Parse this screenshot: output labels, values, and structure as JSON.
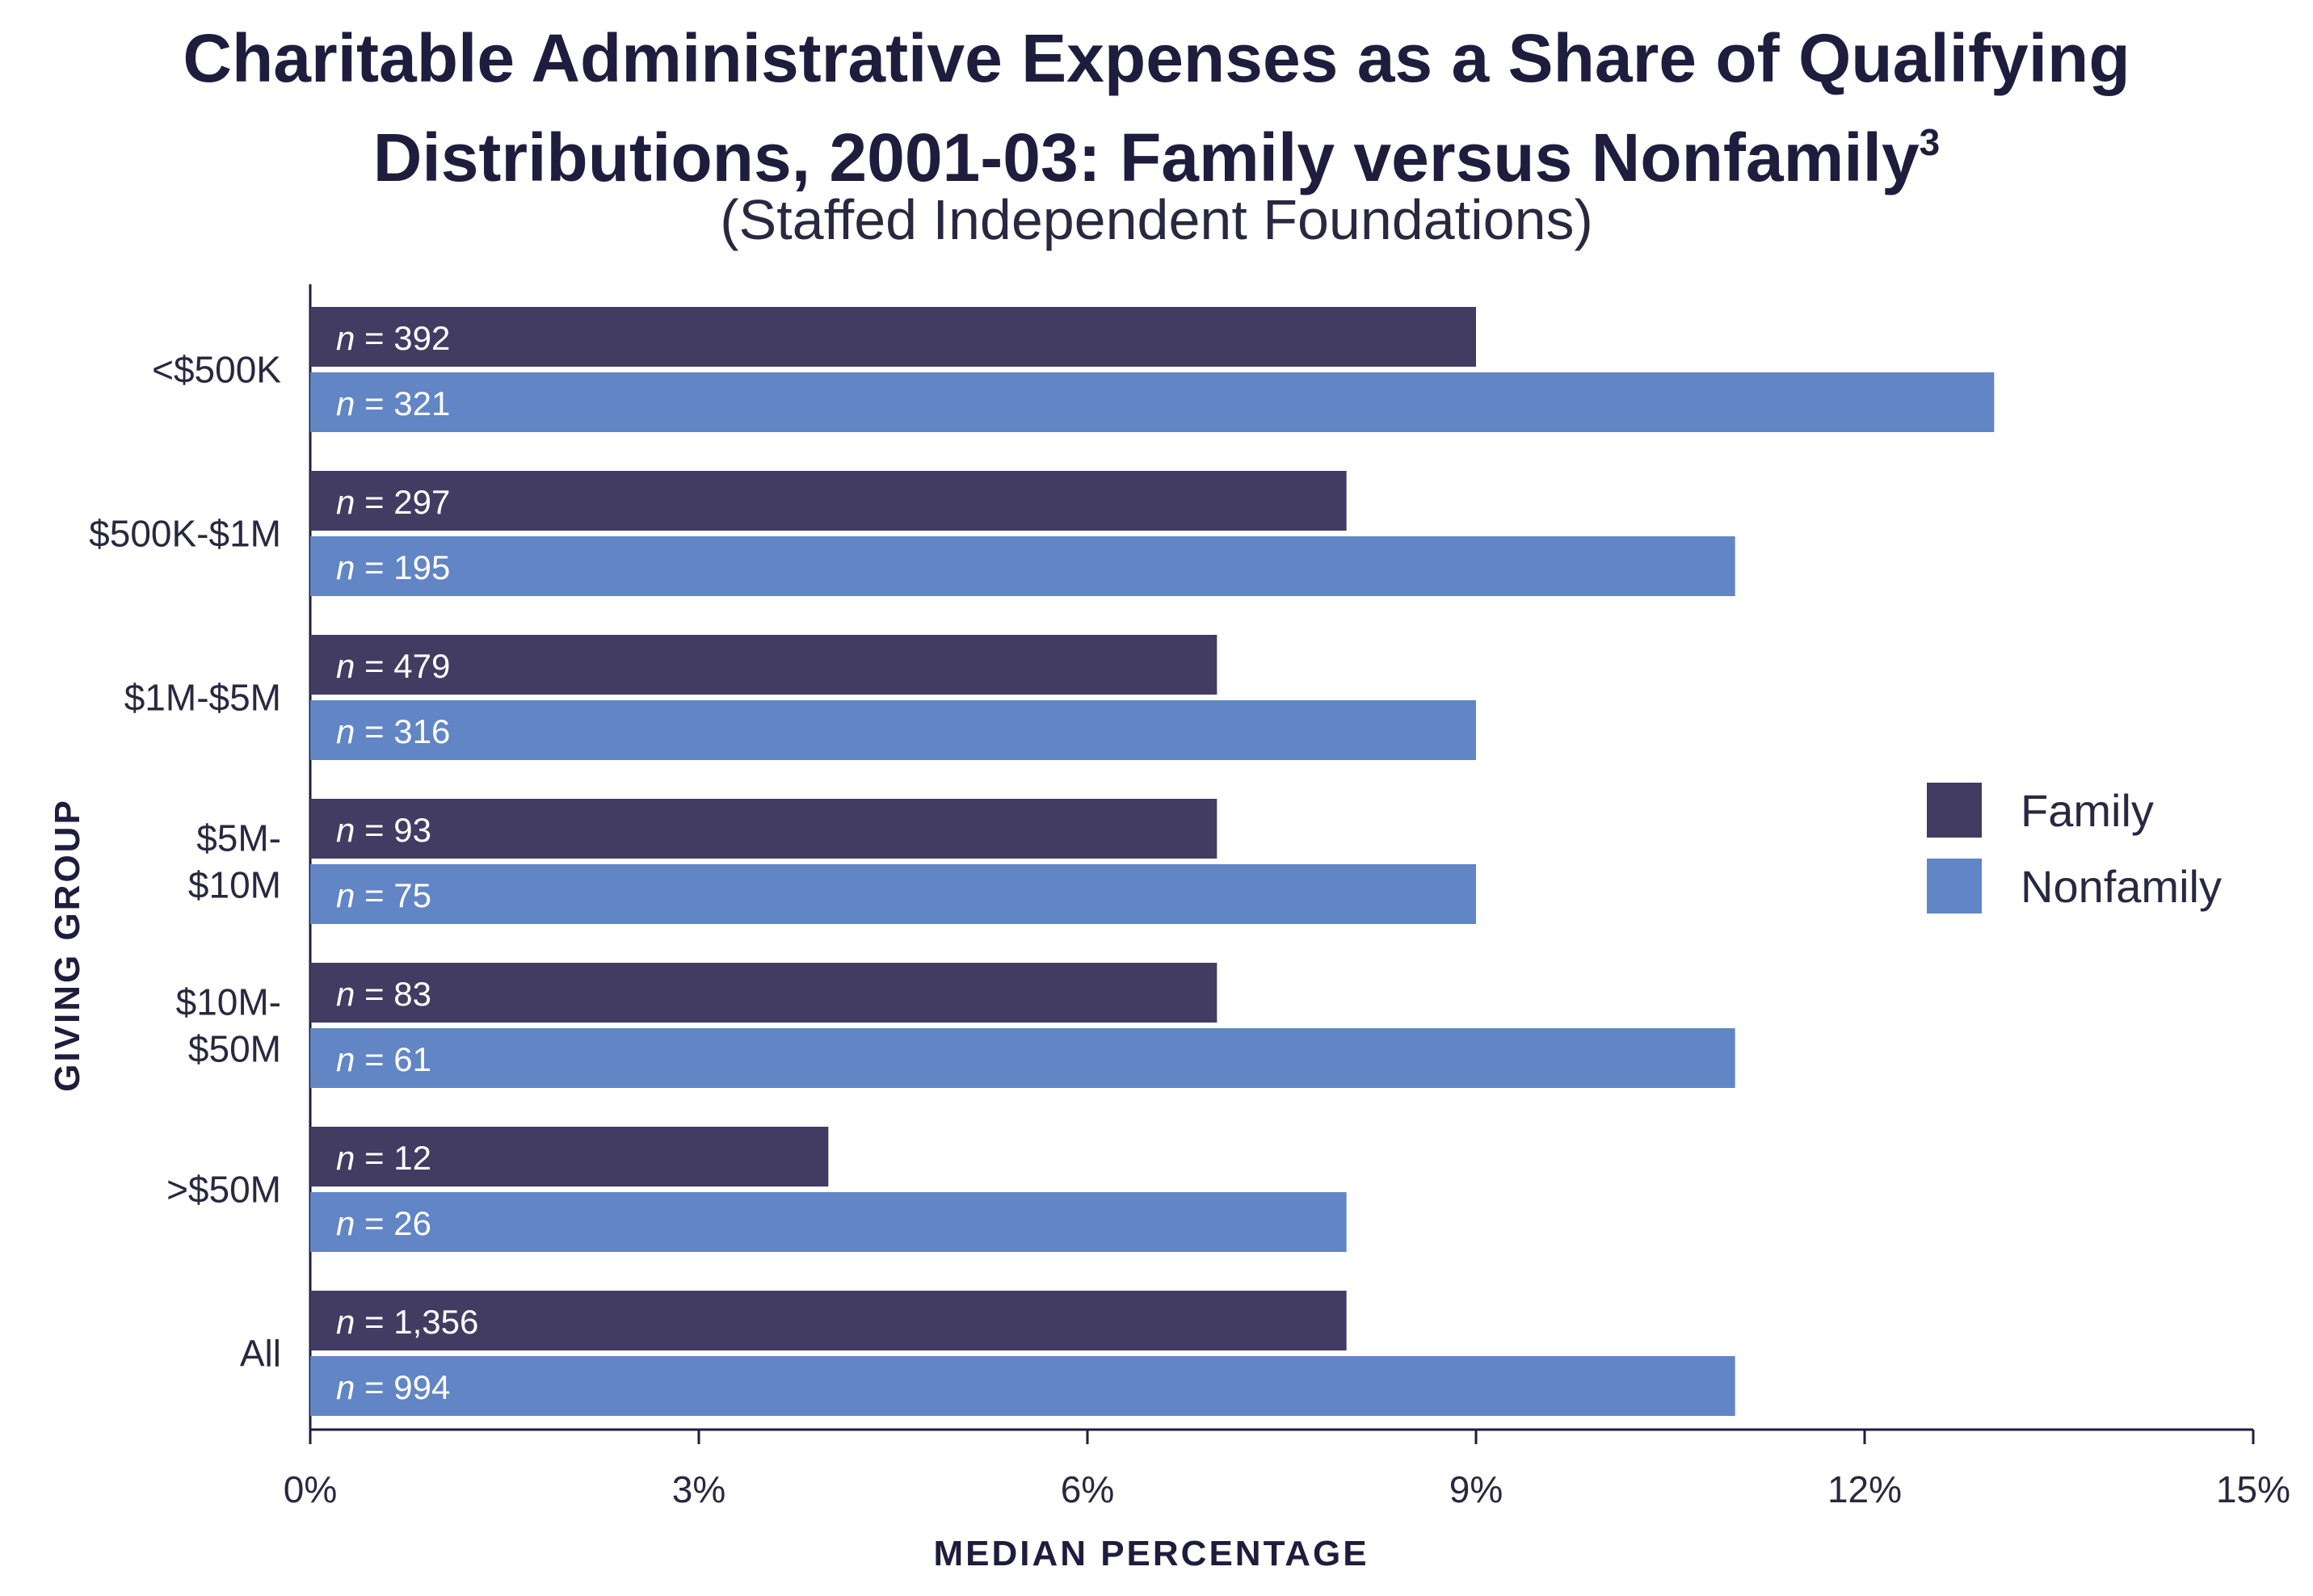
{
  "chart_data": {
    "type": "bar",
    "orientation": "horizontal",
    "title_line1": "Charitable Administrative Expenses as a Share of Qualifying",
    "title_line2": "Distributions, 2001-03: Family versus Nonfamily",
    "title_superscript": "3",
    "subtitle": "(Staffed Independent Foundations)",
    "xlabel": "MEDIAN PERCENTAGE",
    "ylabel": "GIVING GROUP",
    "xlim": [
      0,
      15
    ],
    "xticks": [
      "0%",
      "3%",
      "6%",
      "9%",
      "12%",
      "15%"
    ],
    "categories": [
      [
        "<$500K"
      ],
      [
        "$500K-$1M"
      ],
      [
        "$1M-$5M"
      ],
      [
        "$5M-",
        "$10M"
      ],
      [
        "$10M-",
        "$50M"
      ],
      [
        ">$50M"
      ],
      [
        "All"
      ]
    ],
    "series": [
      {
        "name": "Family",
        "color": "#423c63",
        "values": [
          9,
          8,
          7,
          7,
          7,
          4,
          8
        ],
        "labels": [
          "392",
          "297",
          "479",
          "93",
          "83",
          "12",
          "1,356"
        ]
      },
      {
        "name": "Nonfamily",
        "color": "#6185c5",
        "values": [
          13,
          11,
          9,
          9,
          11,
          8,
          11
        ],
        "labels": [
          "321",
          "195",
          "316",
          "75",
          "61",
          "26",
          "994"
        ]
      }
    ],
    "label_prefix": "n",
    "label_equals": " = ",
    "legend_position": "right",
    "grid": false
  }
}
